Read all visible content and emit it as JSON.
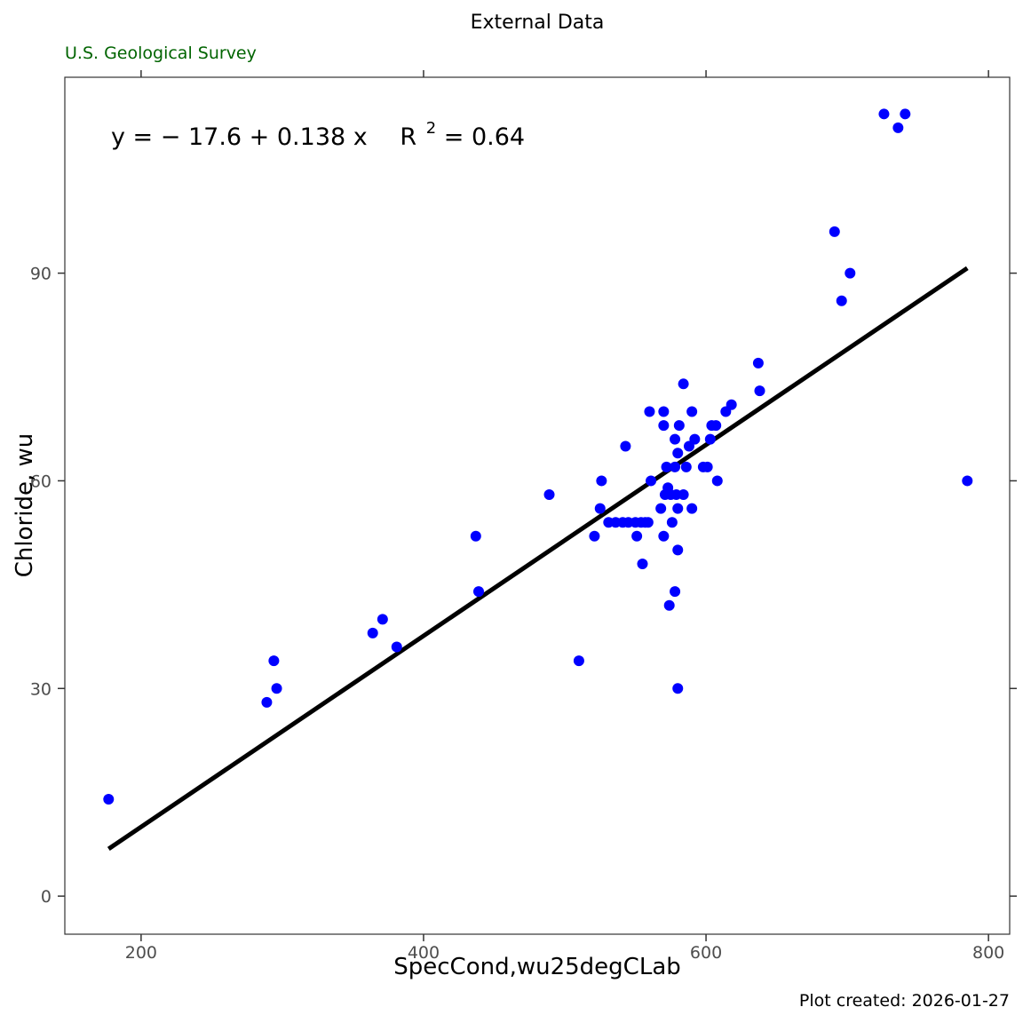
{
  "chart_data": {
    "type": "scatter",
    "title": "External Data",
    "subtitle": "U.S. Geological Survey",
    "caption": "Plot created: 2026-01-27",
    "xlabel": "SpecCond,wu25degCLab",
    "ylabel": "Chloride, wu",
    "xlim": [
      146,
      815
    ],
    "ylim": [
      -5.5,
      118.3
    ],
    "xticks": [
      200,
      400,
      600,
      800
    ],
    "yticks": [
      0,
      30,
      60,
      90
    ],
    "grid": false,
    "point_color": "#0000ff",
    "line_color": "#000000",
    "equation": {
      "prefix": "y = − 17.6 + 0.138 x",
      "r_label": "R",
      "r_exp": "2",
      "r_value": " = 0.64"
    },
    "regression": {
      "intercept": -17.6,
      "slope": 0.138,
      "x_range": [
        177,
        785
      ]
    },
    "points": [
      [
        177,
        14
      ],
      [
        289,
        28
      ],
      [
        294,
        34
      ],
      [
        296,
        30
      ],
      [
        364,
        38
      ],
      [
        371,
        40
      ],
      [
        381,
        36
      ],
      [
        437,
        52
      ],
      [
        439,
        44
      ],
      [
        489,
        58
      ],
      [
        510,
        34
      ],
      [
        521,
        52
      ],
      [
        525,
        56
      ],
      [
        526,
        60
      ],
      [
        531,
        54
      ],
      [
        536,
        54
      ],
      [
        541,
        54
      ],
      [
        545,
        54
      ],
      [
        543,
        65
      ],
      [
        550,
        54
      ],
      [
        551,
        52
      ],
      [
        554,
        54
      ],
      [
        557,
        54
      ],
      [
        555,
        48
      ],
      [
        559,
        54
      ],
      [
        561,
        60
      ],
      [
        560,
        70
      ],
      [
        568,
        56
      ],
      [
        570,
        52
      ],
      [
        570,
        68
      ],
      [
        570,
        70
      ],
      [
        571,
        58
      ],
      [
        572,
        62
      ],
      [
        573,
        59
      ],
      [
        574,
        42
      ],
      [
        575,
        58
      ],
      [
        576,
        54
      ],
      [
        578,
        62
      ],
      [
        578,
        66
      ],
      [
        578,
        44
      ],
      [
        579,
        58
      ],
      [
        580,
        64
      ],
      [
        580,
        56
      ],
      [
        580,
        50
      ],
      [
        580,
        30
      ],
      [
        581,
        68
      ],
      [
        584,
        74
      ],
      [
        584,
        58
      ],
      [
        586,
        62
      ],
      [
        588,
        65
      ],
      [
        590,
        70
      ],
      [
        590,
        56
      ],
      [
        592,
        66
      ],
      [
        598,
        62
      ],
      [
        601,
        62
      ],
      [
        603,
        66
      ],
      [
        604,
        68
      ],
      [
        607,
        68
      ],
      [
        608,
        60
      ],
      [
        614,
        70
      ],
      [
        618,
        71
      ],
      [
        637,
        77
      ],
      [
        638,
        73
      ],
      [
        691,
        96
      ],
      [
        696,
        86
      ],
      [
        702,
        90
      ],
      [
        726,
        113
      ],
      [
        736,
        111
      ],
      [
        741,
        113
      ],
      [
        785,
        60
      ]
    ]
  }
}
